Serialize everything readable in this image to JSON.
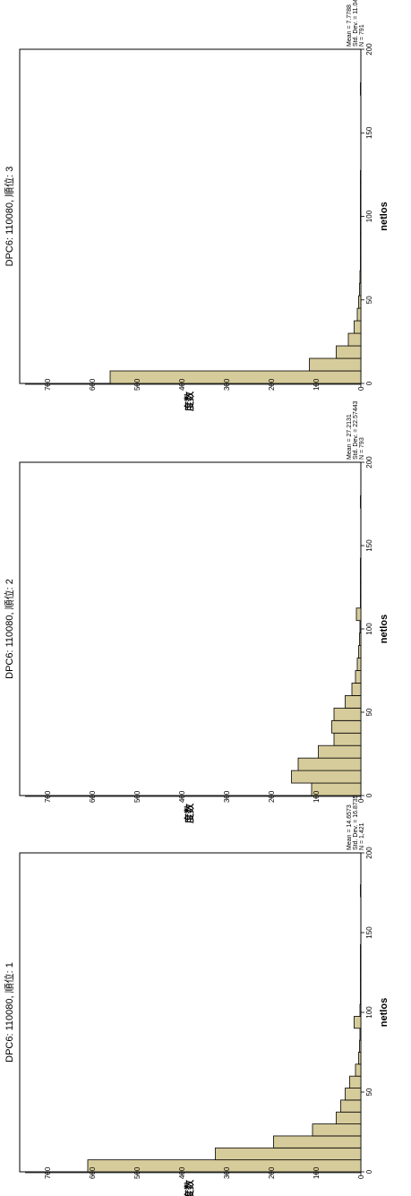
{
  "chart_data": [
    {
      "type": "bar",
      "title": "DPC6: 110080, 順位: 1",
      "xlabel": "netlos",
      "ylabel": "度数",
      "xlim": [
        0,
        200
      ],
      "ylim": [
        0,
        750
      ],
      "xticks": [
        "0",
        "50",
        "100",
        "150",
        "200"
      ],
      "yticks": [
        "0",
        "100",
        "200",
        "300",
        "400",
        "500",
        "600",
        "700"
      ],
      "bin_width": 7.5,
      "values": [
        610,
        325,
        195,
        108,
        55,
        45,
        35,
        25,
        12,
        5,
        3,
        2,
        15,
        2,
        1,
        1,
        1,
        1,
        1,
        0,
        0,
        0,
        0,
        1
      ],
      "stats": [
        "Mean = 14.6573",
        "Std. Dev. = 16.87352",
        "N = 1,421"
      ],
      "bar_color": "#d6cb9a"
    },
    {
      "type": "bar",
      "title": "DPC6: 110080, 順位: 2",
      "xlabel": "netlos",
      "ylabel": "度数",
      "xlim": [
        0,
        200
      ],
      "ylim": [
        0,
        750
      ],
      "xticks": [
        "0",
        "50",
        "100",
        "150",
        "200"
      ],
      "yticks": [
        "0",
        "100",
        "200",
        "300",
        "400",
        "500",
        "600",
        "700"
      ],
      "bin_width": 7.5,
      "values": [
        110,
        155,
        140,
        95,
        60,
        65,
        60,
        35,
        20,
        12,
        8,
        5,
        3,
        2,
        10,
        1,
        1,
        1,
        1,
        0,
        0,
        0,
        0,
        1
      ],
      "stats": [
        "Mean = 27.2131",
        "Std. Dev. = 22.57443",
        "N = 793"
      ],
      "bar_color": "#d6cb9a"
    },
    {
      "type": "bar",
      "title": "DPC6: 110080, 順位: 3",
      "xlabel": "netlos",
      "ylabel": "度数",
      "xlim": [
        0,
        200
      ],
      "ylim": [
        0,
        750
      ],
      "xticks": [
        "0",
        "50",
        "100",
        "150",
        "200"
      ],
      "yticks": [
        "0",
        "100",
        "200",
        "300",
        "400",
        "500",
        "600",
        "700"
      ],
      "bin_width": 7.5,
      "values": [
        560,
        115,
        55,
        28,
        15,
        8,
        5,
        3,
        2,
        1,
        1,
        1,
        1,
        1,
        1,
        1,
        1,
        0,
        0,
        0,
        0,
        0,
        0,
        1
      ],
      "stats": [
        "Mean = 7.7788",
        "Std. Dev. = 11.04698",
        "N = 791"
      ],
      "bar_color": "#d6cb9a"
    }
  ]
}
